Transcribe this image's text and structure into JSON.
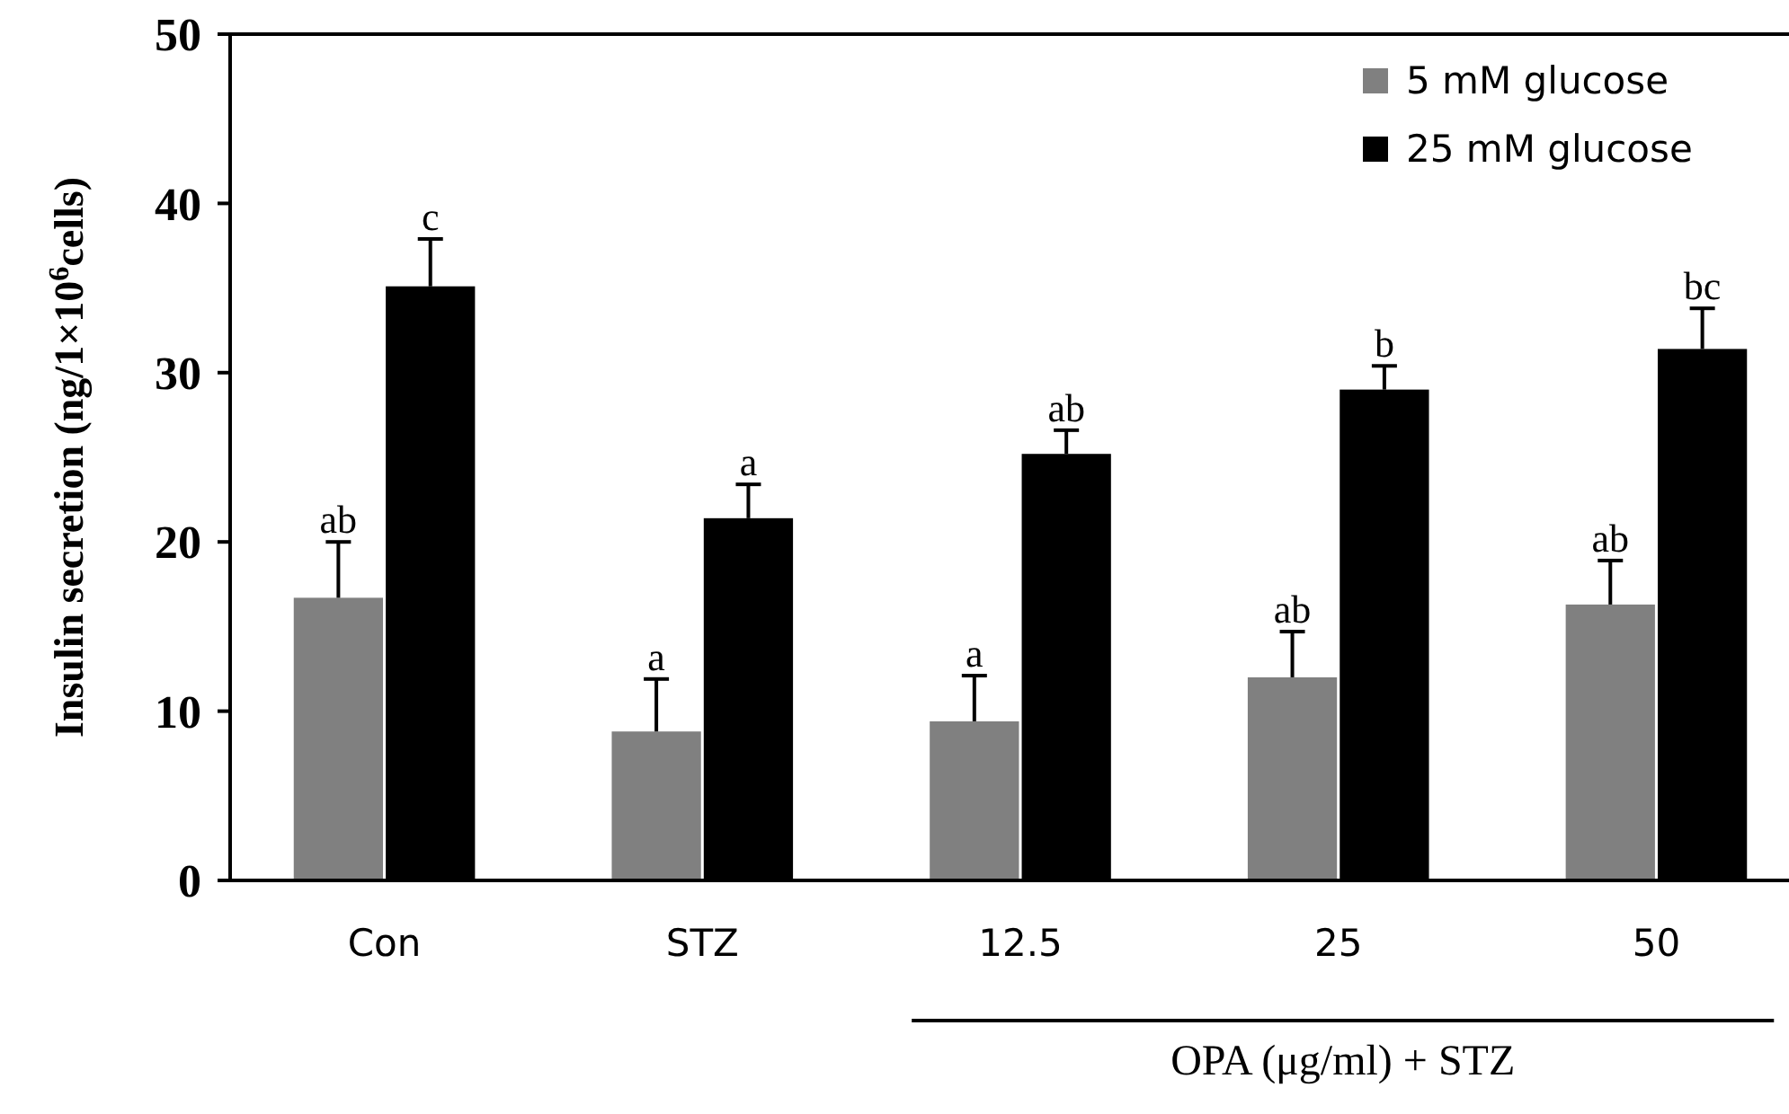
{
  "chart_data": {
    "type": "bar",
    "xlabel": "OPA (μg/ml) + STZ",
    "ylabel": "Insulin secretion (ng/1×10$^{6}$cells)",
    "categories": [
      "Con",
      "STZ",
      "12.5",
      "25",
      "50"
    ],
    "series": [
      {
        "name": "5 mM  glucose",
        "color": "#808080",
        "values": [
          16.7,
          8.8,
          9.4,
          12.0,
          16.3
        ],
        "errors": [
          [
            16.7,
            20.0
          ],
          [
            8.8,
            11.9
          ],
          [
            9.4,
            12.1
          ],
          [
            12.0,
            14.7
          ],
          [
            16.3,
            18.9
          ]
        ],
        "value_labels": [
          "ab",
          "a",
          "a",
          "ab",
          "ab"
        ]
      },
      {
        "name": "25 mM  glucose",
        "color": "#000000",
        "values": [
          35.1,
          21.4,
          25.2,
          29.0,
          31.4
        ],
        "errors": [
          [
            35.1,
            37.9
          ],
          [
            21.4,
            23.4
          ],
          [
            25.2,
            26.6
          ],
          [
            29.0,
            30.4
          ],
          [
            31.4,
            33.8
          ]
        ],
        "value_labels": [
          "c",
          "a",
          "ab",
          "b",
          "bc"
        ]
      }
    ],
    "ylim": [
      0,
      50
    ],
    "yticks": [
      0,
      10,
      20,
      30,
      40,
      50
    ],
    "legend": "top right"
  }
}
